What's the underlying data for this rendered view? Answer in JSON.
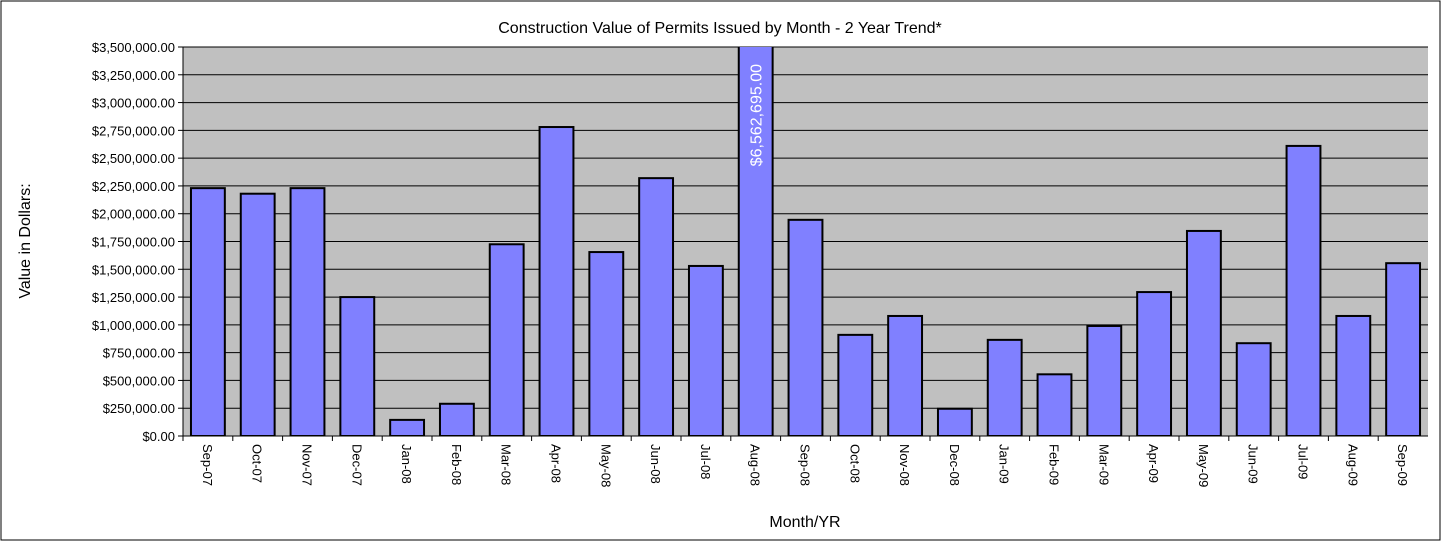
{
  "chart_data": {
    "type": "bar",
    "title": "Construction Value of Permits Issued by Month - 2 Year Trend*",
    "x_label": "Month/YR",
    "y_label": "Value in Dollars:",
    "categories": [
      "Sep-07",
      "Oct-07",
      "Nov-07",
      "Dec-07",
      "Jan-08",
      "Feb-08",
      "Mar-08",
      "Apr-08",
      "May-08",
      "Jun-08",
      "Jul-08",
      "Aug-08",
      "Sep-08",
      "Oct-08",
      "Nov-08",
      "Dec-08",
      "Jan-09",
      "Feb-09",
      "Mar-09",
      "Apr-09",
      "May-09",
      "Jun-09",
      "Jul-09",
      "Aug-09",
      "Sep-09"
    ],
    "values": [
      2230000,
      2180000,
      2230000,
      1250000,
      145000,
      290000,
      1725000,
      2780000,
      1655000,
      2320000,
      1530000,
      6562695,
      1945000,
      910000,
      1080000,
      245000,
      865000,
      555000,
      990000,
      1295000,
      1845000,
      835000,
      2610000,
      1080000,
      1555000
    ],
    "value_labels": [
      null,
      null,
      null,
      null,
      null,
      null,
      null,
      null,
      null,
      null,
      null,
      "$6,562,695.00",
      null,
      null,
      null,
      null,
      null,
      null,
      null,
      null,
      null,
      null,
      null,
      null,
      null
    ],
    "color": "#8080ff",
    "ylim": [
      0,
      3500000
    ],
    "yticks": [
      {
        "value": 0,
        "label": "$0.00"
      },
      {
        "value": 250000,
        "label": "$250,000.00"
      },
      {
        "value": 500000,
        "label": "$500,000.00"
      },
      {
        "value": 750000,
        "label": "$750,000.00"
      },
      {
        "value": 1000000,
        "label": "$1,000,000.00"
      },
      {
        "value": 1250000,
        "label": "$1,250,000.00"
      },
      {
        "value": 1500000,
        "label": "$1,500,000.00"
      },
      {
        "value": 1750000,
        "label": "$1,750,000.00"
      },
      {
        "value": 2000000,
        "label": "$2,000,000.00"
      },
      {
        "value": 2250000,
        "label": "$2,250,000.00"
      },
      {
        "value": 2500000,
        "label": "$2,500,000.00"
      },
      {
        "value": 2750000,
        "label": "$2,750,000.00"
      },
      {
        "value": 3000000,
        "label": "$3,000,000.00"
      },
      {
        "value": 3250000,
        "label": "$3,250,000.00"
      },
      {
        "value": 3500000,
        "label": "$3,500,000.00"
      }
    ],
    "grid": true
  }
}
